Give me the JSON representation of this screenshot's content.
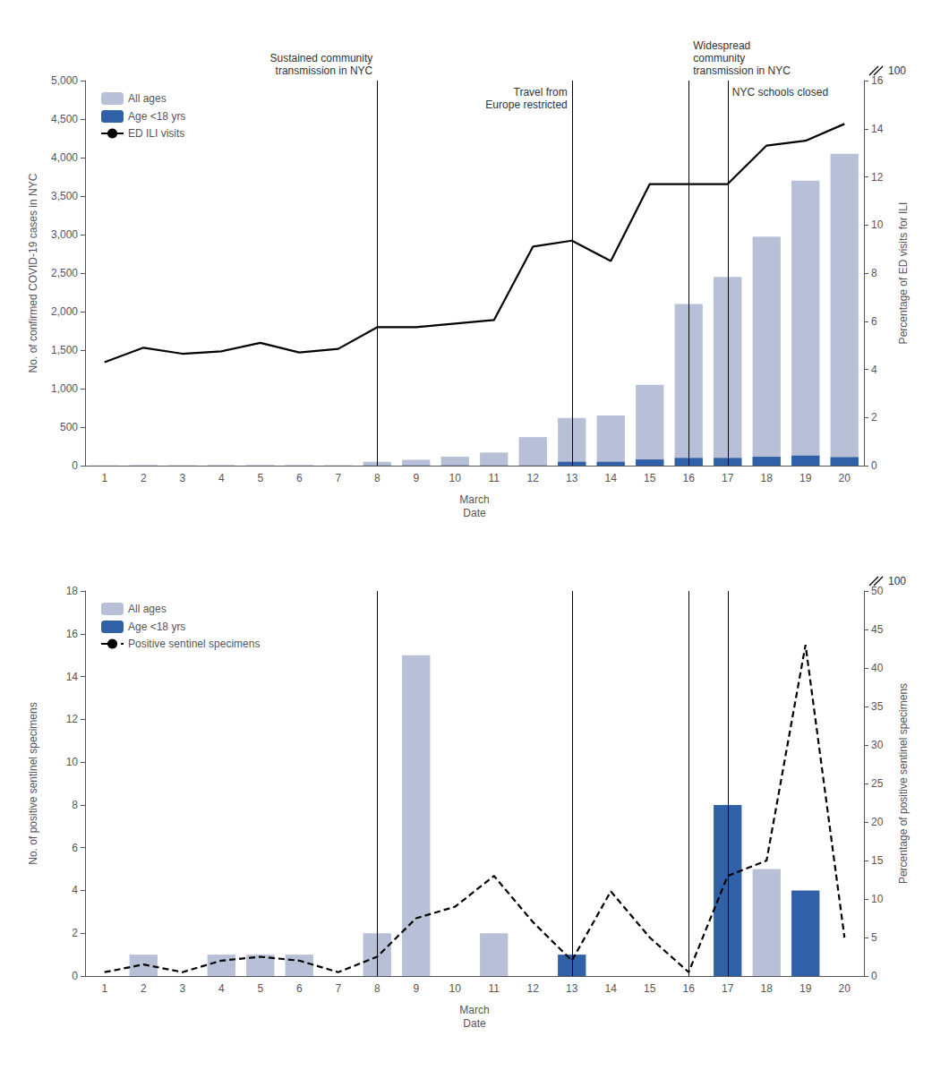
{
  "chart_data": [
    {
      "type": "bar",
      "categories": [
        1,
        2,
        3,
        4,
        5,
        6,
        7,
        8,
        9,
        10,
        11,
        12,
        13,
        14,
        15,
        16,
        17,
        18,
        19,
        20
      ],
      "xlabel": "March\nDate",
      "ylabel": "No. of confirmed COVID-19 cases in NYC",
      "y2label": "Percentage of ED visits for ILI",
      "series": [
        {
          "name": "All ages",
          "color": "#b8c0d8",
          "values": [
            3,
            3,
            3,
            3,
            3,
            3,
            3,
            50,
            75,
            115,
            170,
            370,
            620,
            650,
            1050,
            2100,
            2450,
            2975,
            3700,
            4050
          ]
        },
        {
          "name": "Age <18 yrs",
          "color": "#3060a8",
          "values": [
            1,
            2,
            1,
            2,
            2,
            2,
            1,
            2,
            2,
            2,
            2,
            2,
            50,
            50,
            80,
            100,
            100,
            115,
            130,
            110
          ]
        },
        {
          "name": "ED ILI visits",
          "type": "line",
          "axis": "y2",
          "color": "black",
          "line_style": "solid",
          "values": [
            4.3,
            4.9,
            4.65,
            4.75,
            5.1,
            4.7,
            4.85,
            5.75,
            5.75,
            5.9,
            6.05,
            9.1,
            9.35,
            8.5,
            11.7,
            11.7,
            11.7,
            13.3,
            13.5,
            14.2
          ]
        }
      ],
      "ylim": [
        0,
        5000
      ],
      "yticks": [
        0,
        500,
        {
          "value": 1000,
          "label": "1,000"
        },
        {
          "value": 1500,
          "label": "1,500"
        },
        {
          "value": 2000,
          "label": "2,000"
        },
        {
          "value": 2500,
          "label": "2,500"
        },
        {
          "value": 3000,
          "label": "3,000"
        },
        {
          "value": 3500,
          "label": "3,500"
        },
        {
          "value": 4000,
          "label": "4,000"
        },
        {
          "value": 4500,
          "label": "4,500"
        },
        {
          "value": 5000,
          "label": "5,000"
        }
      ],
      "y2lim": [
        0,
        16
      ],
      "y2ticks": [
        0,
        2,
        4,
        6,
        8,
        10,
        12,
        14,
        16
      ],
      "y2_break": 100,
      "vlines": [
        8,
        13,
        16,
        17
      ],
      "annotations": [
        {
          "x": 8,
          "text": "Sustained community\ntransmission in NYC"
        },
        {
          "x": 13,
          "text": "Travel from\nEurope restricted"
        },
        {
          "x": 16,
          "text": "Widespread\ncommunity\ntransmission in NYC"
        },
        {
          "x": 17,
          "text": "NYC schools closed"
        }
      ],
      "legend": "upper left",
      "grid": false
    },
    {
      "type": "bar",
      "categories": [
        1,
        2,
        3,
        4,
        5,
        6,
        7,
        8,
        9,
        10,
        11,
        12,
        13,
        14,
        15,
        16,
        17,
        18,
        19,
        20
      ],
      "xlabel": "March\nDate",
      "ylabel": "No. of positive sentinel specimens",
      "y2label": "Percentage of positive sentinel specimens",
      "series": [
        {
          "name": "All ages",
          "color": "#b8c0d8",
          "values": [
            0,
            1,
            0,
            1,
            1,
            1,
            0,
            2,
            15,
            0,
            2,
            0,
            0,
            0,
            0,
            0,
            0,
            5,
            0,
            0
          ]
        },
        {
          "name": "Age <18 yrs",
          "color": "#3060a8",
          "values": [
            0,
            0,
            0,
            0,
            0,
            0,
            0,
            0,
            0,
            0,
            0,
            0,
            1,
            0,
            0,
            0,
            8,
            0,
            4,
            0
          ]
        },
        {
          "name": "Positive sentinel specimens",
          "type": "line",
          "axis": "y2",
          "color": "black",
          "line_style": "dashed",
          "values": [
            0.5,
            1.5,
            0.5,
            2.0,
            2.5,
            2.0,
            0.5,
            2.5,
            7.5,
            9.0,
            13.0,
            7.0,
            2.0,
            11.0,
            5.0,
            0.5,
            13.0,
            15.0,
            43.0,
            5.0
          ]
        }
      ],
      "ylim": [
        0,
        18
      ],
      "yticks": [
        0,
        2,
        4,
        6,
        8,
        10,
        12,
        14,
        16,
        18
      ],
      "y2lim": [
        0,
        50
      ],
      "y2ticks": [
        0,
        5,
        10,
        15,
        20,
        25,
        30,
        35,
        40,
        45,
        50
      ],
      "y2_break": 100,
      "vlines": [
        8,
        13,
        16,
        17
      ],
      "legend": "upper left",
      "grid": false
    }
  ]
}
